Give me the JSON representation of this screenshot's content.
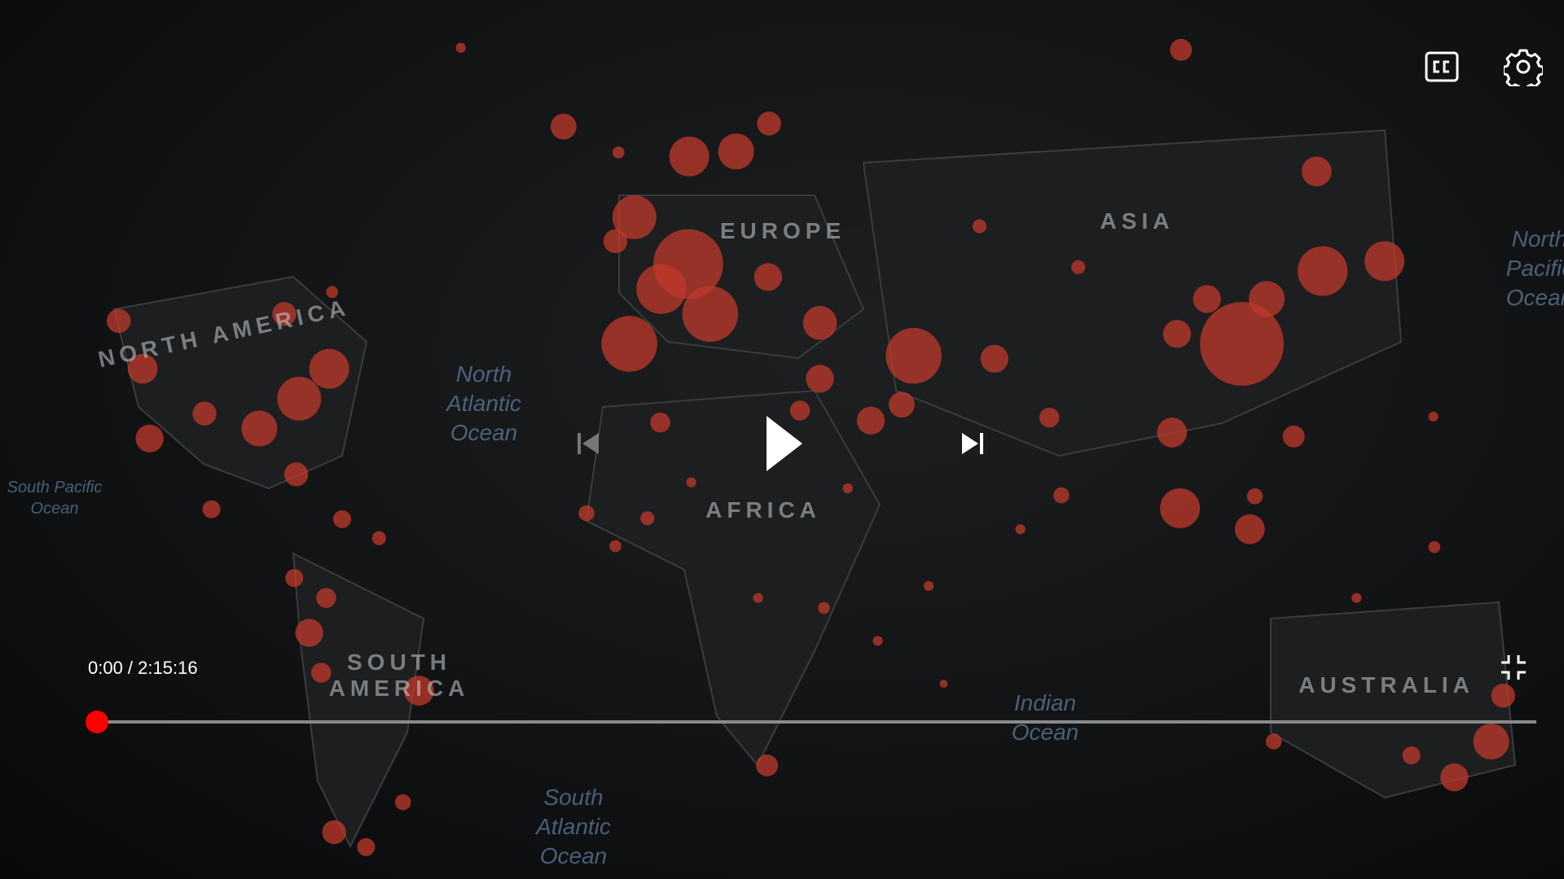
{
  "player": {
    "time_label": "0:00 / 2:15:16"
  },
  "video_frame": {
    "labels": [
      "NORTH AMERICA",
      "EUROPE",
      "ASIA",
      "AFRICA",
      "SOUTH AMERICA",
      "AUSTRALIA",
      "North Atlantic Ocean",
      "South Atlantic Ocean",
      "Indian Ocean",
      "North Pacific Ocean",
      "South Pacific Ocean"
    ]
  }
}
